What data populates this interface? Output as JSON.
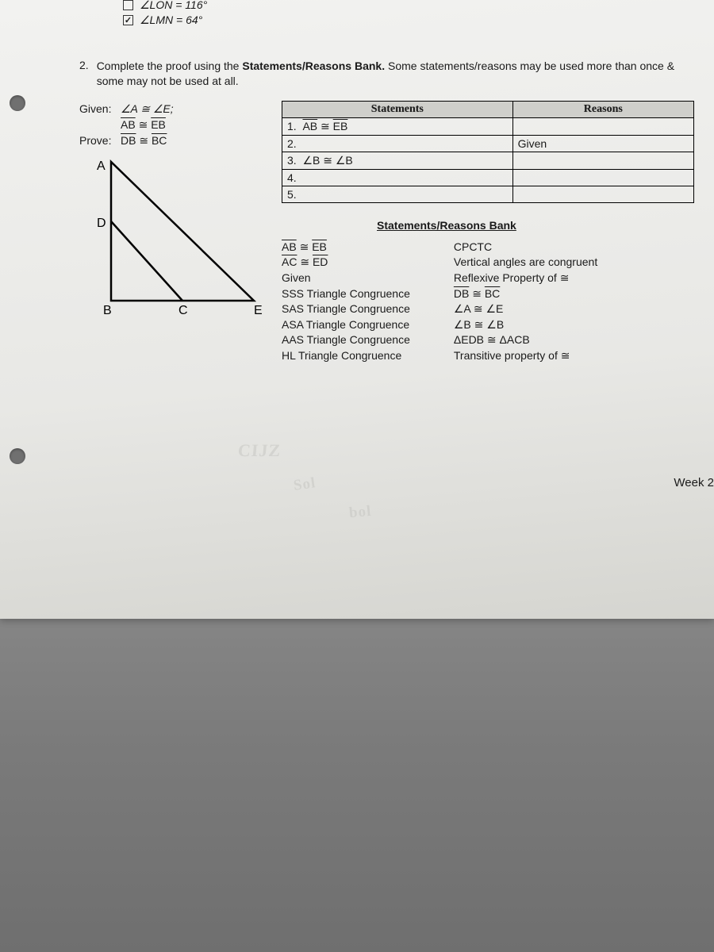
{
  "warmup": {
    "item1": {
      "checked": false,
      "text": "∠LON = 116°"
    },
    "item2": {
      "checked": true,
      "text": "∠LMN = 64°"
    }
  },
  "problem": {
    "number": "2.",
    "text_prefix": "Complete the proof using the ",
    "text_bold": "Statements/Reasons Bank.",
    "text_suffix": " Some statements/reasons may be used more than once & some may not be used at all."
  },
  "given_prove": {
    "given_label": "Given:",
    "given1": "∠A ≅ ∠E;",
    "given2_lhs": "AB",
    "given2_rhs": "EB",
    "prove_label": "Prove:",
    "prove_lhs": "DB",
    "prove_rhs": "BC"
  },
  "diagram": {
    "labels": {
      "A": "A",
      "B": "B",
      "C": "C",
      "D": "D",
      "E": "E"
    },
    "stroke": "#000000",
    "stroke_width": 2.5
  },
  "table": {
    "header_statements": "Statements",
    "header_reasons": "Reasons",
    "rows": [
      {
        "n": "1.",
        "stmt_lhs": "AB",
        "stmt_rhs": "EB",
        "reason": ""
      },
      {
        "n": "2.",
        "stmt": "",
        "reason": "Given"
      },
      {
        "n": "3.",
        "stmt": "∠B ≅ ∠B",
        "reason": ""
      },
      {
        "n": "4.",
        "stmt": "",
        "reason": ""
      },
      {
        "n": "5.",
        "stmt": "",
        "reason": ""
      }
    ]
  },
  "bank": {
    "heading": "Statements/Reasons Bank",
    "col1": [
      {
        "type": "overline",
        "lhs": "AB",
        "rhs": "EB"
      },
      {
        "type": "overline",
        "lhs": "AC",
        "rhs": "ED"
      },
      {
        "type": "plain",
        "text": "Given"
      },
      {
        "type": "plain",
        "text": "SSS Triangle Congruence"
      },
      {
        "type": "plain",
        "text": "SAS Triangle Congruence"
      },
      {
        "type": "plain",
        "text": "ASA Triangle Congruence"
      },
      {
        "type": "plain",
        "text": "AAS Triangle Congruence"
      },
      {
        "type": "plain",
        "text": "HL Triangle Congruence"
      }
    ],
    "col2": [
      {
        "type": "plain",
        "text": "CPCTC"
      },
      {
        "type": "plain",
        "text": "Vertical angles are congruent"
      },
      {
        "type": "plain",
        "text": "Reflexive Property of ≅"
      },
      {
        "type": "overline",
        "lhs": "DB",
        "rhs": "BC"
      },
      {
        "type": "plain",
        "text": "∠A ≅ ∠E"
      },
      {
        "type": "plain",
        "text": "∠B ≅ ∠B"
      },
      {
        "type": "plain",
        "text": "ΔEDB ≅ ΔACB"
      },
      {
        "type": "plain",
        "text": "Transitive property of ≅"
      }
    ]
  },
  "footer": {
    "week": "Week 2"
  },
  "ghost": {
    "g1": "CIJZ",
    "g2": "Sol",
    "g3": "bol"
  },
  "colors": {
    "paper_bg": "#efeeea",
    "table_header_bg": "#cfcfcb",
    "border": "#000000",
    "surface": "#7a7a7a"
  }
}
